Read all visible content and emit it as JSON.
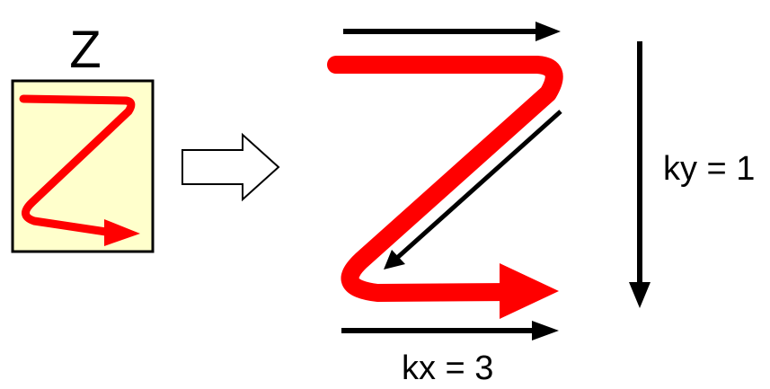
{
  "labels": {
    "z_letter": "Z",
    "ky": "ky = 1",
    "kx": "kx = 3"
  },
  "colors": {
    "stroke_red": "#ff0000",
    "box_fill": "#ffffcc",
    "box_border": "#000000",
    "arrow_black": "#000000",
    "hollow_arrow_fill": "#ffffff"
  },
  "icons": {
    "transform_arrow": "hollow-right-arrow"
  }
}
